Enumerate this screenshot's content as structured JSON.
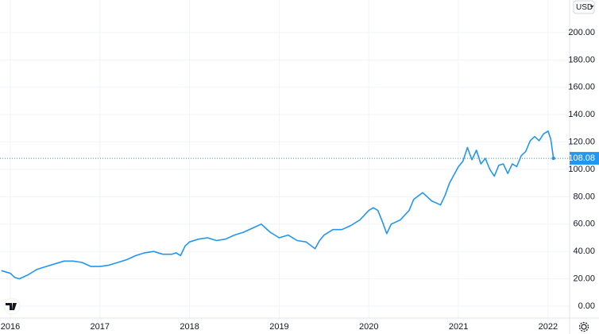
{
  "currency": "USD",
  "chart_data": {
    "type": "line",
    "x": [
      2015.9,
      2016.0,
      2016.05,
      2016.1,
      2016.2,
      2016.3,
      2016.4,
      2016.5,
      2016.6,
      2016.7,
      2016.8,
      2016.9,
      2017.0,
      2017.1,
      2017.2,
      2017.3,
      2017.4,
      2017.5,
      2017.6,
      2017.7,
      2017.8,
      2017.85,
      2017.9,
      2017.95,
      2018.0,
      2018.1,
      2018.2,
      2018.3,
      2018.4,
      2018.5,
      2018.6,
      2018.7,
      2018.8,
      2018.85,
      2018.9,
      2019.0,
      2019.1,
      2019.2,
      2019.3,
      2019.4,
      2019.45,
      2019.5,
      2019.6,
      2019.7,
      2019.8,
      2019.9,
      2020.0,
      2020.05,
      2020.1,
      2020.15,
      2020.2,
      2020.25,
      2020.35,
      2020.45,
      2020.5,
      2020.6,
      2020.7,
      2020.8,
      2020.85,
      2020.9,
      2021.0,
      2021.05,
      2021.1,
      2021.15,
      2021.2,
      2021.25,
      2021.3,
      2021.35,
      2021.4,
      2021.45,
      2021.5,
      2021.55,
      2021.6,
      2021.65,
      2021.7,
      2021.75,
      2021.8,
      2021.85,
      2021.9,
      2021.95,
      2022.0,
      2022.03,
      2022.06
    ],
    "series": [
      {
        "color": "#2196f3",
        "values": [
          26,
          24,
          21,
          20,
          23,
          27,
          29,
          31,
          33,
          33,
          32,
          29,
          29,
          30,
          32,
          34,
          37,
          39,
          40,
          38,
          38,
          39,
          37,
          44,
          47,
          49,
          50,
          48,
          49,
          52,
          54,
          57,
          60,
          57,
          54,
          50,
          52,
          48,
          47,
          42,
          48,
          52,
          56,
          56,
          59,
          63,
          70,
          72,
          70,
          62,
          53,
          60,
          63,
          70,
          78,
          83,
          77,
          74,
          81,
          90,
          102,
          106,
          116,
          107,
          114,
          104,
          108,
          100,
          95,
          103,
          104,
          97,
          104,
          102,
          110,
          113,
          121,
          124,
          121,
          126,
          128,
          122,
          108.08
        ]
      }
    ],
    "price_label": {
      "value": 108.08,
      "label": "108.08"
    },
    "xlim": [
      2015.885,
      2022.24
    ],
    "xticks": [
      2016,
      2017,
      2018,
      2019,
      2020,
      2021,
      2022
    ],
    "ylim": [
      -8.7,
      223.8
    ],
    "yticks": [
      {
        "value": 0,
        "label": "0.00"
      },
      {
        "value": 20,
        "label": "20.00"
      },
      {
        "value": 40,
        "label": "40.00"
      },
      {
        "value": 60,
        "label": "60.00"
      },
      {
        "value": 80,
        "label": "80.00"
      },
      {
        "value": 100,
        "label": "100.00"
      },
      {
        "value": 120,
        "label": "120.00"
      },
      {
        "value": 140,
        "label": "140.00"
      },
      {
        "value": 160,
        "label": "160.00"
      },
      {
        "value": 180,
        "label": "180.00"
      },
      {
        "value": 200,
        "label": "200.00"
      }
    ],
    "grid": true
  }
}
